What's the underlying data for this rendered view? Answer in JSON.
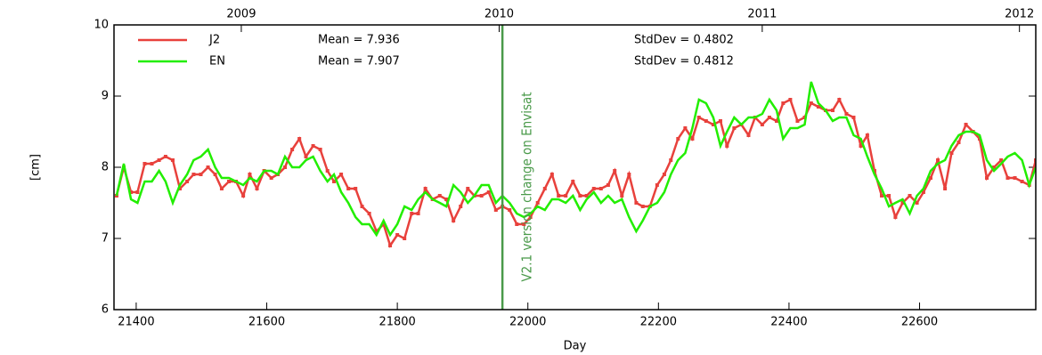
{
  "chart_data": {
    "type": "line",
    "xlabel": "Day",
    "ylabel": "[cm]",
    "xlim": [
      21366,
      22778
    ],
    "ylim": [
      6,
      10
    ],
    "xticks": [
      21400,
      21600,
      21800,
      22000,
      22200,
      22400,
      22600
    ],
    "yticks": [
      6,
      7,
      8,
      9,
      10
    ],
    "top_ticks": [
      {
        "value": 21561,
        "label": "2009"
      },
      {
        "value": 21956,
        "label": "2010"
      },
      {
        "value": 22359,
        "label": "2011"
      },
      {
        "value": 22753,
        "label": "2012"
      }
    ],
    "vline": {
      "x": 21961,
      "label": "V2.1 version change on Envisat",
      "color": "#4a9a4a"
    },
    "x": [
      21370,
      21381,
      21392,
      21402,
      21413,
      21424,
      21435,
      21445,
      21456,
      21467,
      21478,
      21488,
      21499,
      21510,
      21521,
      21531,
      21542,
      21553,
      21564,
      21574,
      21585,
      21596,
      21607,
      21617,
      21628,
      21639,
      21650,
      21660,
      21671,
      21682,
      21693,
      21703,
      21714,
      21725,
      21736,
      21746,
      21757,
      21768,
      21779,
      21789,
      21800,
      21811,
      21822,
      21832,
      21843,
      21854,
      21865,
      21875,
      21886,
      21897,
      21908,
      21918,
      21929,
      21940,
      21951,
      21961,
      21972,
      21983,
      21994,
      22004,
      22015,
      22026,
      22037,
      22047,
      22058,
      22069,
      22080,
      22090,
      22101,
      22112,
      22123,
      22133,
      22144,
      22155,
      22166,
      22176,
      22187,
      22198,
      22209,
      22219,
      22230,
      22241,
      22252,
      22262,
      22273,
      22284,
      22295,
      22305,
      22316,
      22327,
      22338,
      22348,
      22359,
      22370,
      22381,
      22391,
      22402,
      22413,
      22424,
      22434,
      22445,
      22456,
      22467,
      22477,
      22488,
      22499,
      22510,
      22520,
      22531,
      22542,
      22553,
      22563,
      22574,
      22585,
      22596,
      22606,
      22617,
      22628,
      22639,
      22649,
      22660,
      22671,
      22682,
      22692,
      22703,
      22714,
      22725,
      22735,
      22746,
      22757,
      22768,
      22778
    ],
    "series": [
      {
        "name": "J2",
        "color": "#e8413c",
        "stats": [
          "Mean = 7.936",
          "StdDev = 0.4802"
        ],
        "values": [
          7.6,
          8.0,
          7.65,
          7.65,
          8.05,
          8.05,
          8.1,
          8.15,
          8.1,
          7.7,
          7.8,
          7.9,
          7.9,
          8.0,
          7.9,
          7.7,
          7.8,
          7.8,
          7.6,
          7.9,
          7.7,
          7.95,
          7.85,
          7.9,
          8.0,
          8.25,
          8.4,
          8.15,
          8.3,
          8.25,
          7.95,
          7.8,
          7.9,
          7.7,
          7.7,
          7.45,
          7.35,
          7.1,
          7.2,
          6.9,
          7.05,
          7.0,
          7.35,
          7.35,
          7.7,
          7.55,
          7.6,
          7.55,
          7.25,
          7.45,
          7.7,
          7.6,
          7.6,
          7.65,
          7.4,
          7.45,
          7.4,
          7.2,
          7.2,
          7.3,
          7.5,
          7.7,
          7.9,
          7.6,
          7.6,
          7.8,
          7.6,
          7.6,
          7.7,
          7.7,
          7.75,
          7.95,
          7.6,
          7.9,
          7.5,
          7.45,
          7.45,
          7.75,
          7.9,
          8.1,
          8.4,
          8.55,
          8.4,
          8.7,
          8.65,
          8.6,
          8.65,
          8.3,
          8.55,
          8.6,
          8.45,
          8.7,
          8.6,
          8.7,
          8.65,
          8.9,
          8.95,
          8.65,
          8.7,
          8.9,
          8.85,
          8.8,
          8.8,
          8.95,
          8.75,
          8.7,
          8.3,
          8.45,
          7.95,
          7.6,
          7.6,
          7.3,
          7.5,
          7.6,
          7.5,
          7.65,
          7.85,
          8.1,
          7.7,
          8.2,
          8.35,
          8.6,
          8.5,
          8.4,
          7.85,
          8.0,
          8.1,
          7.85,
          7.85,
          7.8,
          7.75,
          8.1
        ]
      },
      {
        "name": "EN",
        "color": "#22ee00",
        "stats": [
          "Mean = 7.907",
          "StdDev = 0.4812"
        ],
        "values": [
          7.6,
          8.05,
          7.55,
          7.5,
          7.8,
          7.8,
          7.95,
          7.8,
          7.5,
          7.75,
          7.9,
          8.1,
          8.15,
          8.25,
          8.0,
          7.85,
          7.85,
          7.8,
          7.75,
          7.85,
          7.8,
          7.95,
          7.95,
          7.9,
          8.15,
          8.0,
          8.0,
          8.1,
          8.15,
          7.95,
          7.8,
          7.9,
          7.65,
          7.5,
          7.3,
          7.2,
          7.2,
          7.05,
          7.25,
          7.05,
          7.2,
          7.45,
          7.4,
          7.55,
          7.65,
          7.55,
          7.5,
          7.45,
          7.75,
          7.65,
          7.5,
          7.6,
          7.75,
          7.75,
          7.5,
          7.6,
          7.5,
          7.35,
          7.3,
          7.35,
          7.45,
          7.4,
          7.55,
          7.55,
          7.5,
          7.6,
          7.4,
          7.55,
          7.65,
          7.5,
          7.6,
          7.5,
          7.55,
          7.3,
          7.1,
          7.25,
          7.45,
          7.5,
          7.65,
          7.9,
          8.1,
          8.2,
          8.55,
          8.95,
          8.9,
          8.7,
          8.3,
          8.5,
          8.7,
          8.6,
          8.7,
          8.7,
          8.75,
          8.95,
          8.8,
          8.4,
          8.55,
          8.55,
          8.6,
          9.2,
          8.9,
          8.8,
          8.65,
          8.7,
          8.7,
          8.45,
          8.4,
          8.15,
          7.9,
          7.7,
          7.45,
          7.5,
          7.55,
          7.35,
          7.6,
          7.7,
          7.95,
          8.05,
          8.1,
          8.3,
          8.45,
          8.5,
          8.5,
          8.45,
          8.1,
          7.95,
          8.05,
          8.15,
          8.2,
          8.1,
          7.75,
          8.0
        ]
      }
    ]
  }
}
